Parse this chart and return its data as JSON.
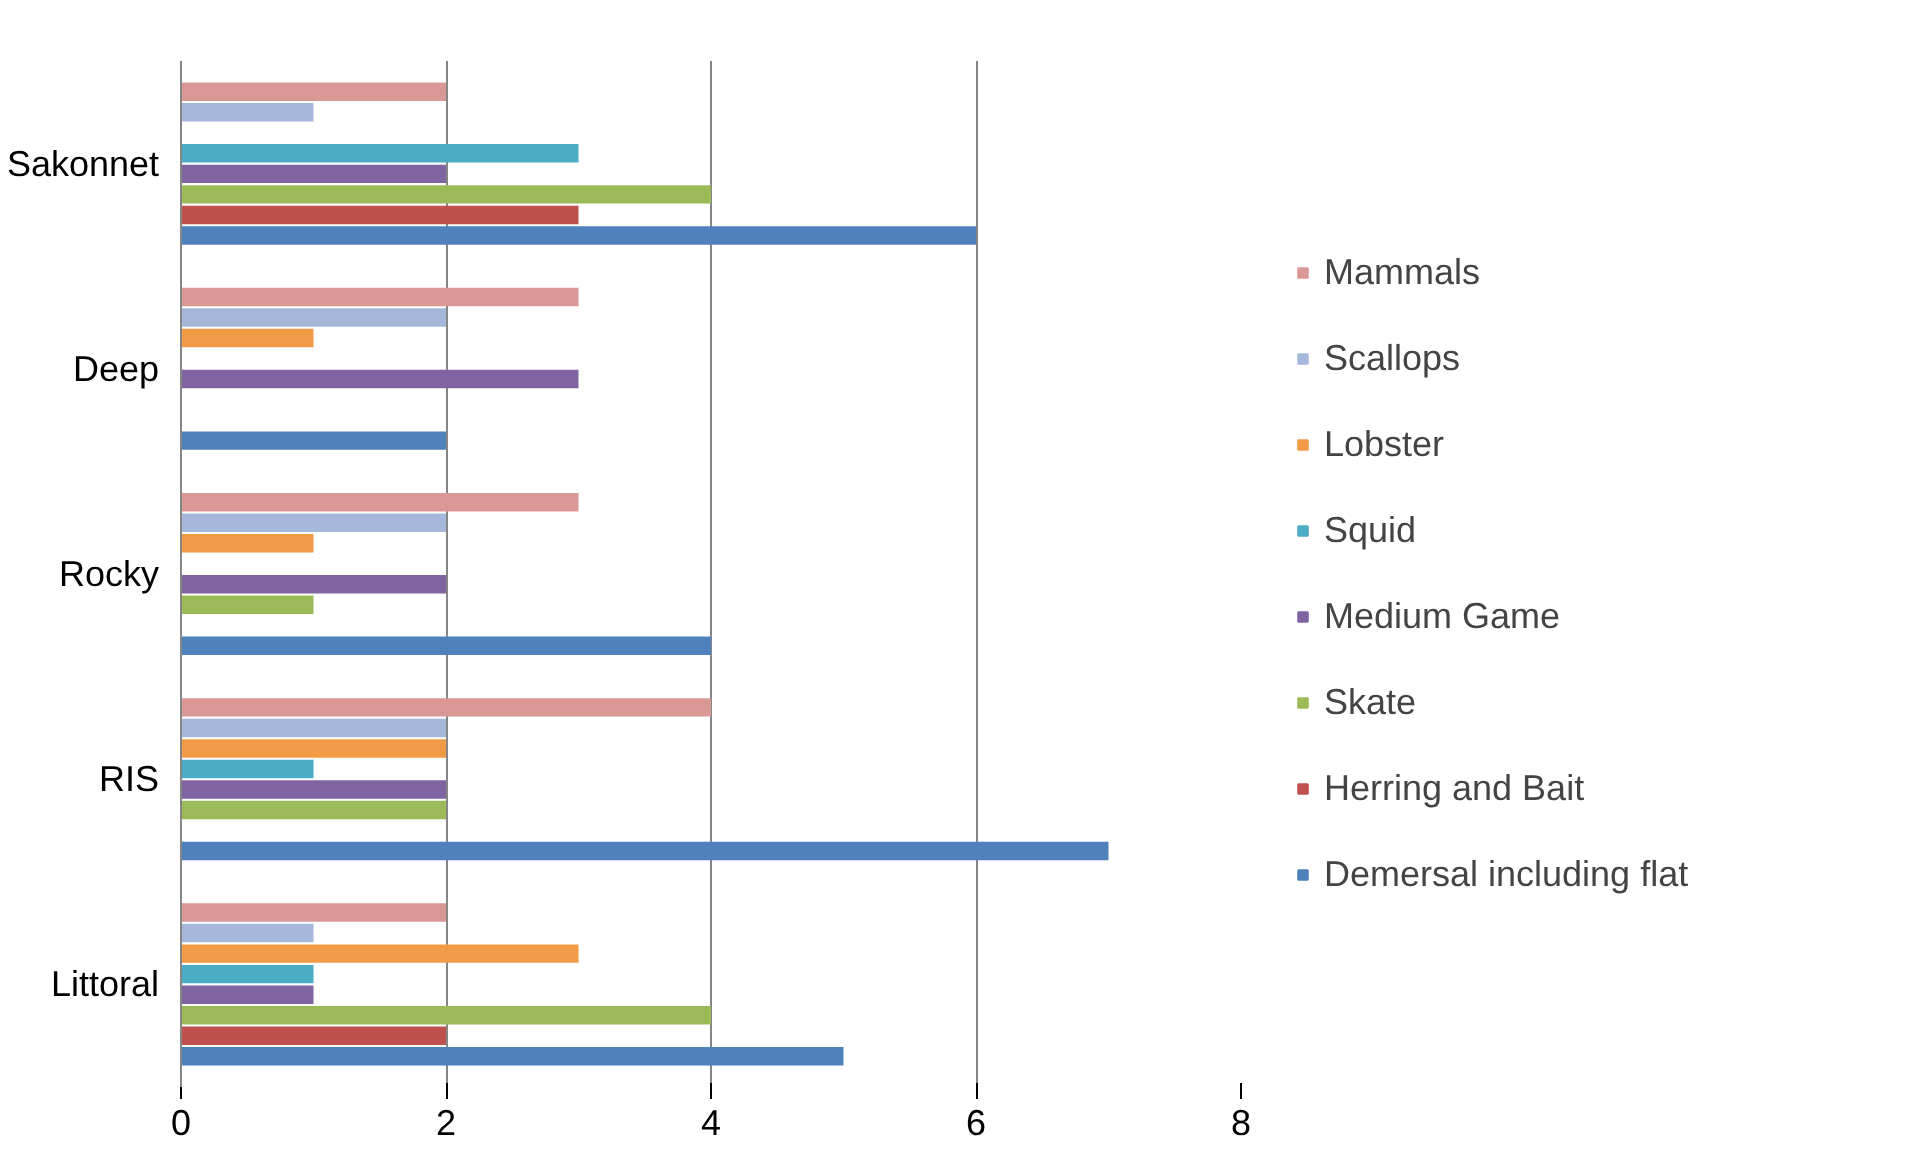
{
  "chart_data": {
    "type": "bar",
    "orientation": "horizontal",
    "categories": [
      "Sakonnet",
      "Deep",
      "Rocky",
      "RIS",
      "Littoral"
    ],
    "series": [
      {
        "name": "Mammals",
        "color": "#d99795",
        "values": [
          2,
          3,
          3,
          4,
          2
        ]
      },
      {
        "name": "Scallops",
        "color": "#a5b8dc",
        "values": [
          1,
          2,
          2,
          2,
          1
        ]
      },
      {
        "name": "Lobster",
        "color": "#f29b47",
        "values": [
          0,
          1,
          1,
          2,
          3
        ]
      },
      {
        "name": "Squid",
        "color": "#4bacc6",
        "values": [
          3,
          0,
          0,
          1,
          1
        ]
      },
      {
        "name": "Medium Game",
        "color": "#8064a2",
        "values": [
          2,
          3,
          2,
          2,
          1
        ]
      },
      {
        "name": "Skate",
        "color": "#9bbb59",
        "values": [
          4,
          0,
          1,
          2,
          4
        ]
      },
      {
        "name": "Herring and Bait",
        "color": "#c0504d",
        "values": [
          3,
          0,
          0,
          0,
          2
        ]
      },
      {
        "name": "Demersal including flat",
        "color": "#4f81bd",
        "values": [
          6,
          2,
          4,
          7,
          5
        ]
      }
    ],
    "xlim": [
      0,
      8
    ],
    "xticks": [
      0,
      2,
      4,
      6,
      8
    ],
    "grid": "x",
    "legend": "right"
  }
}
